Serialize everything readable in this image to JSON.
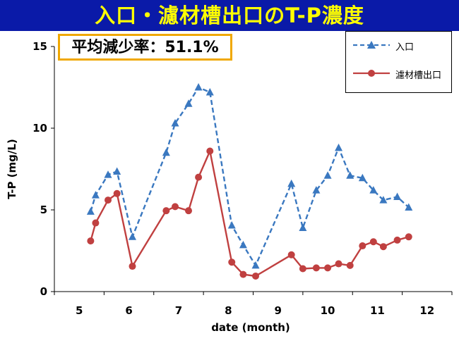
{
  "title": "入口・濾材槽出口のT-P濃度",
  "badge": "平均減少率：51.1%",
  "colors": {
    "title_bg": "#0a1aa8",
    "title_text": "#ffff00",
    "badge_border": "#f0a800",
    "inlet": "#3a78c0",
    "outlet": "#c04040"
  },
  "chart_data": {
    "type": "line",
    "title": "入口・濾材槽出口のT-P濃度",
    "xlabel": "date (month)",
    "ylabel": "T-P (mg/L)",
    "xlim": [
      4.5,
      12.5
    ],
    "ylim": [
      0,
      15
    ],
    "xticks": [
      5,
      6,
      7,
      8,
      9,
      10,
      11,
      12
    ],
    "yticks": [
      0,
      5,
      10,
      15
    ],
    "grid": false,
    "legend_position": "top-right",
    "series": [
      {
        "name": "入口",
        "style": "dashed",
        "marker": "triangle",
        "color": "#3a78c0",
        "points": [
          [
            5.23,
            4.9
          ],
          [
            5.33,
            5.9
          ],
          [
            5.58,
            7.15
          ],
          [
            5.76,
            7.35
          ],
          [
            6.07,
            3.35
          ],
          [
            6.75,
            8.5
          ],
          [
            6.93,
            10.3
          ],
          [
            7.2,
            11.5
          ],
          [
            7.4,
            12.5
          ],
          [
            7.63,
            12.2
          ],
          [
            8.07,
            4.05
          ],
          [
            8.3,
            2.85
          ],
          [
            8.55,
            1.6
          ],
          [
            9.27,
            6.6
          ],
          [
            9.5,
            3.9
          ],
          [
            9.77,
            6.2
          ],
          [
            10.0,
            7.1
          ],
          [
            10.22,
            8.8
          ],
          [
            10.45,
            7.1
          ],
          [
            10.7,
            6.95
          ],
          [
            10.92,
            6.2
          ],
          [
            11.12,
            5.6
          ],
          [
            11.4,
            5.8
          ],
          [
            11.63,
            5.15
          ]
        ]
      },
      {
        "name": "濾材槽出口",
        "style": "solid",
        "marker": "circle",
        "color": "#c04040",
        "points": [
          [
            5.23,
            3.1
          ],
          [
            5.33,
            4.2
          ],
          [
            5.58,
            5.6
          ],
          [
            5.76,
            6.0
          ],
          [
            6.07,
            1.55
          ],
          [
            6.75,
            4.95
          ],
          [
            6.93,
            5.2
          ],
          [
            7.2,
            4.95
          ],
          [
            7.4,
            7.0
          ],
          [
            7.63,
            8.6
          ],
          [
            8.07,
            1.8
          ],
          [
            8.3,
            1.05
          ],
          [
            8.55,
            0.95
          ],
          [
            9.27,
            2.25
          ],
          [
            9.5,
            1.4
          ],
          [
            9.77,
            1.45
          ],
          [
            10.0,
            1.45
          ],
          [
            10.22,
            1.7
          ],
          [
            10.45,
            1.6
          ],
          [
            10.7,
            2.8
          ],
          [
            10.92,
            3.05
          ],
          [
            11.12,
            2.75
          ],
          [
            11.4,
            3.15
          ],
          [
            11.63,
            3.35
          ]
        ]
      }
    ]
  }
}
